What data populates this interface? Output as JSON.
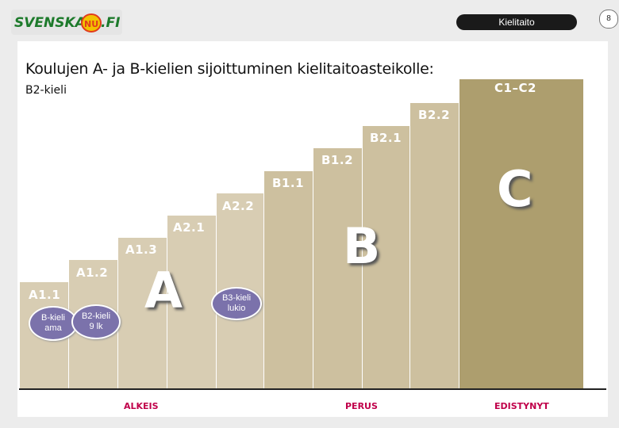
{
  "header": {
    "logo_text": "SVENSKA NU.FI",
    "section_pill": "Kielitaito",
    "page_number": "8"
  },
  "slide": {
    "title": "Koulujen A- ja B-kielien sijoittuminen kielitaitoasteikolle:",
    "subtitle": "B2-kieli",
    "levels": [
      "A1.1",
      "A1.2",
      "A1.3",
      "A2.1",
      "A2.2",
      "B1.1",
      "B1.2",
      "B2.1",
      "B2.2",
      "C1–C2"
    ],
    "big_letters": [
      "A",
      "B",
      "C"
    ],
    "bubbles": [
      {
        "line1": "B-kieli",
        "line2": "ama"
      },
      {
        "line1": "B2-kieli",
        "line2": "9 lk"
      },
      {
        "line1": "B3-kieli",
        "line2": "lukio"
      }
    ],
    "footer": [
      "ALKEIS",
      "PERUS",
      "EDISTYNYT"
    ]
  },
  "colors": {
    "step_a": "#d8cdb3",
    "step_b": "#cdc09f",
    "step_c": "#ad9e6e",
    "bubble": "#7b72ab",
    "footer_text": "#c0004a"
  }
}
